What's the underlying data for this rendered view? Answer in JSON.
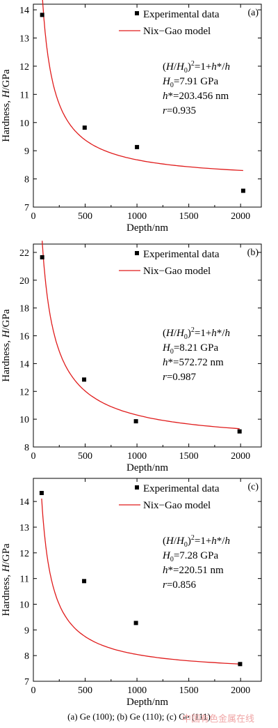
{
  "chart_data": [
    {
      "type": "scatter",
      "panel_label": "(a)",
      "xlabel": "Depth/nm",
      "ylabel_parts": [
        "Hardness, ",
        "H",
        "/GPa"
      ],
      "xlim": [
        0,
        2200
      ],
      "ylim": [
        7,
        14.2
      ],
      "xticks": [
        0,
        500,
        1000,
        1500,
        2000
      ],
      "yticks": [
        7,
        8,
        9,
        10,
        11,
        12,
        13,
        14
      ],
      "legend": [
        "Experimental data",
        "Nix−Gao model"
      ],
      "legend_position": "top-right",
      "series": [
        {
          "name": "Experimental data",
          "kind": "points",
          "x": [
            85,
            495,
            1000,
            2025
          ],
          "y": [
            13.82,
            9.82,
            9.13,
            7.58
          ]
        },
        {
          "name": "Nix−Gao model",
          "kind": "line",
          "color": "#e01b1b",
          "H0": 7.91,
          "h_star": 203.456,
          "x_range": [
            85,
            2025
          ]
        }
      ],
      "annotation": {
        "eq_a": "(",
        "eq_b": "H",
        "eq_c": "/",
        "eq_d": "H",
        "eq_e": "0",
        "eq_f": ")",
        "eq_g": "2",
        "eq_h": "=1+",
        "eq_i": "h",
        "eq_j": "*/",
        "eq_k": "h",
        "h0_a": "H",
        "h0_b": "0",
        "h0_c": "=7.91 GPa",
        "hs_a": "h",
        "hs_b": "*=203.456 nm",
        "r_a": "r",
        "r_b": "=0.935"
      }
    },
    {
      "type": "scatter",
      "panel_label": "(b)",
      "xlabel": "Depth/nm",
      "ylabel_parts": [
        "Hardness, ",
        "H",
        "/GPa"
      ],
      "xlim": [
        0,
        2200
      ],
      "ylim": [
        8,
        22.6
      ],
      "xticks": [
        0,
        500,
        1000,
        1500,
        2000
      ],
      "yticks": [
        8,
        10,
        12,
        14,
        16,
        18,
        20,
        22
      ],
      "legend": [
        "Experimental data",
        "Nix−Gao model"
      ],
      "legend_position": "top-right",
      "series": [
        {
          "name": "Experimental data",
          "kind": "points",
          "x": [
            85,
            490,
            990,
            1990
          ],
          "y": [
            21.65,
            12.85,
            9.85,
            9.12
          ]
        },
        {
          "name": "Nix−Gao model",
          "kind": "line",
          "color": "#e01b1b",
          "H0": 8.21,
          "h_star": 572.72,
          "x_range": [
            85,
            1990
          ]
        }
      ],
      "annotation": {
        "eq_a": "(",
        "eq_b": "H",
        "eq_c": "/",
        "eq_d": "H",
        "eq_e": "0",
        "eq_f": ")",
        "eq_g": "2",
        "eq_h": "=1+",
        "eq_i": "h",
        "eq_j": "*/",
        "eq_k": "h",
        "h0_a": "H",
        "h0_b": "0",
        "h0_c": "=8.21 GPa",
        "hs_a": "h",
        "hs_b": "*=572.72 nm",
        "r_a": "r",
        "r_b": "=0.987"
      }
    },
    {
      "type": "scatter",
      "panel_label": "(c)",
      "xlabel": "Depth/nm",
      "ylabel_parts": [
        "Hardness, ",
        "H",
        "/GPa"
      ],
      "xlim": [
        0,
        2200
      ],
      "ylim": [
        7,
        14.9
      ],
      "xticks": [
        0,
        500,
        1000,
        1500,
        2000
      ],
      "yticks": [
        7,
        8,
        9,
        10,
        11,
        12,
        13,
        14
      ],
      "legend": [
        "Experimental data",
        "Nix−Gao model"
      ],
      "legend_position": "top-right",
      "series": [
        {
          "name": "Experimental data",
          "kind": "points",
          "x": [
            80,
            490,
            990,
            1995
          ],
          "y": [
            14.33,
            10.9,
            9.27,
            7.67
          ]
        },
        {
          "name": "Nix−Gao model",
          "kind": "line",
          "color": "#e01b1b",
          "H0": 7.28,
          "h_star": 220.51,
          "x_range": [
            80,
            1995
          ]
        }
      ],
      "annotation": {
        "eq_a": "(",
        "eq_b": "H",
        "eq_c": "/",
        "eq_d": "H",
        "eq_e": "0",
        "eq_f": ")",
        "eq_g": "2",
        "eq_h": "=1+",
        "eq_i": "h",
        "eq_j": "*/",
        "eq_k": "h",
        "h0_a": "H",
        "h0_b": "0",
        "h0_c": "=7.28 GPa",
        "hs_a": "h",
        "hs_b": "*=220.51 nm",
        "r_a": "r",
        "r_b": "=0.856"
      }
    }
  ],
  "caption": {
    "text": "(a) Ge (100); (b) Ge (110); (c) Ge (11",
    "tail": "1)",
    "watermark": "中国有色金属在线"
  }
}
